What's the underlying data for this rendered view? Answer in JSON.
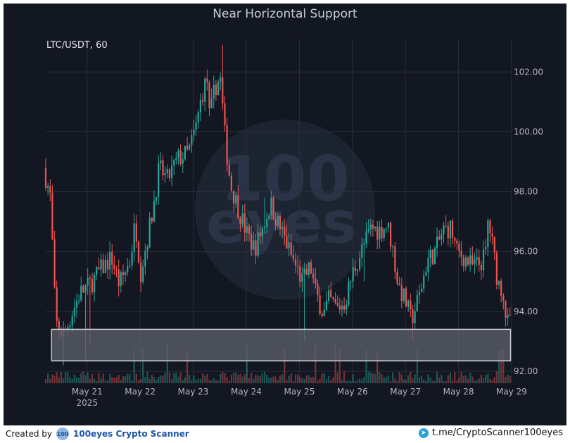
{
  "chart_data": {
    "type": "candlestick",
    "title": "Near Horizontal Support",
    "symbol_label": "LTC/USDT, 60",
    "ylim": [
      91.6,
      103.7
    ],
    "y_ticks": [
      92.0,
      94.0,
      96.0,
      98.0,
      100.0,
      102.0
    ],
    "y_tick_labels": [
      "92.00",
      "94.00",
      "96.00",
      "98.00",
      "100.00",
      "102.00"
    ],
    "x_range_days": [
      20.22,
      29.0
    ],
    "x_ticks": [
      {
        "day": 21,
        "label": "May 21",
        "sublabel": "2025"
      },
      {
        "day": 22,
        "label": "May 22",
        "sublabel": ""
      },
      {
        "day": 23,
        "label": "May 23",
        "sublabel": ""
      },
      {
        "day": 24,
        "label": "May 24",
        "sublabel": ""
      },
      {
        "day": 25,
        "label": "May 25",
        "sublabel": ""
      },
      {
        "day": 26,
        "label": "May 26",
        "sublabel": ""
      },
      {
        "day": 27,
        "label": "May 27",
        "sublabel": ""
      },
      {
        "day": 28,
        "label": "May 28",
        "sublabel": ""
      },
      {
        "day": 29,
        "label": "May 29",
        "sublabel": ""
      }
    ],
    "support_zone": {
      "from_day": 20.33,
      "to_day": 28.98,
      "low": 92.35,
      "high": 93.4
    },
    "price_path": [
      [
        20.22,
        98.8
      ],
      [
        20.35,
        97.8
      ],
      [
        20.45,
        93.6
      ],
      [
        20.6,
        93.2
      ],
      [
        20.75,
        93.9
      ],
      [
        20.9,
        94.6
      ],
      [
        21.1,
        94.9
      ],
      [
        21.3,
        95.4
      ],
      [
        21.5,
        95.8
      ],
      [
        21.65,
        94.9
      ],
      [
        21.85,
        95.7
      ],
      [
        21.95,
        97.0
      ],
      [
        22.05,
        95.3
      ],
      [
        22.25,
        97.1
      ],
      [
        22.4,
        98.8
      ],
      [
        22.55,
        98.4
      ],
      [
        22.75,
        99.1
      ],
      [
        22.95,
        99.3
      ],
      [
        23.1,
        100.2
      ],
      [
        23.2,
        101.2
      ],
      [
        23.3,
        101.8
      ],
      [
        23.35,
        100.4
      ],
      [
        23.45,
        101.5
      ],
      [
        23.55,
        101.8
      ],
      [
        23.65,
        99.6
      ],
      [
        23.75,
        98.2
      ],
      [
        23.9,
        97.4
      ],
      [
        24.05,
        96.6
      ],
      [
        24.2,
        96.1
      ],
      [
        24.35,
        96.8
      ],
      [
        24.5,
        97.6
      ],
      [
        24.6,
        97.1
      ],
      [
        24.75,
        96.5
      ],
      [
        24.9,
        95.8
      ],
      [
        25.1,
        95.0
      ],
      [
        25.25,
        95.5
      ],
      [
        25.35,
        94.6
      ],
      [
        25.5,
        93.9
      ],
      [
        25.6,
        94.4
      ],
      [
        25.75,
        94.1
      ],
      [
        25.9,
        94.3
      ],
      [
        26.05,
        95.3
      ],
      [
        26.25,
        96.2
      ],
      [
        26.4,
        96.8
      ],
      [
        26.55,
        96.7
      ],
      [
        26.7,
        96.9
      ],
      [
        26.8,
        96.1
      ],
      [
        26.9,
        94.9
      ],
      [
        27.05,
        94.3
      ],
      [
        27.15,
        93.7
      ],
      [
        27.3,
        94.5
      ],
      [
        27.45,
        95.7
      ],
      [
        27.6,
        96.0
      ],
      [
        27.75,
        96.7
      ],
      [
        27.9,
        96.8
      ],
      [
        28.0,
        96.0
      ],
      [
        28.15,
        95.8
      ],
      [
        28.3,
        95.5
      ],
      [
        28.45,
        95.6
      ],
      [
        28.55,
        95.9
      ],
      [
        28.6,
        97.1
      ],
      [
        28.7,
        96.0
      ],
      [
        28.78,
        95.0
      ],
      [
        28.88,
        94.7
      ],
      [
        28.95,
        93.6
      ]
    ],
    "wick_spikes": [
      [
        20.55,
        92.2
      ],
      [
        20.95,
        92.4
      ],
      [
        21.05,
        92.9
      ],
      [
        25.1,
        93.0
      ],
      [
        26.22,
        95.0
      ],
      [
        27.15,
        93.0
      ],
      [
        23.55,
        102.9
      ],
      [
        24.35,
        97.8
      ]
    ],
    "colors": {
      "up": "#26a69a",
      "down": "#ef5350",
      "background": "#131722",
      "grid": "#2a2e39",
      "axis_text": "#b2b5be",
      "zone_fill": "#5a5e69",
      "zone_border": "#c8cad0"
    }
  },
  "footer": {
    "created_by": "Created by",
    "brand_logo_text": "100",
    "brand_name": "100eyes Crypto Scanner",
    "telegram_icon": "telegram-icon",
    "telegram_link": "t.me/CryptoScanner100eyes"
  },
  "watermark": {
    "line1": "100",
    "line2": "eyes"
  }
}
